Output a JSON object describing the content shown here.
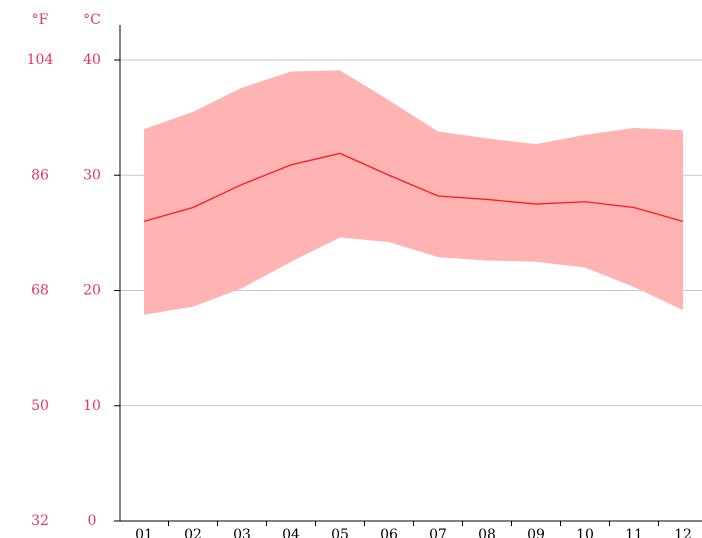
{
  "chart_data": {
    "type": "band-line",
    "y_unit_label": "°C",
    "y2_unit_label": "°F",
    "categories": [
      "01",
      "02",
      "03",
      "04",
      "05",
      "06",
      "07",
      "08",
      "09",
      "10",
      "11",
      "12"
    ],
    "series": [
      {
        "color": "#ffb3b3",
        "values": [
          34.0,
          35.5,
          37.6,
          39.0,
          39.1,
          36.5,
          33.8,
          33.2,
          32.7,
          33.5,
          34.1,
          33.9
        ]
      },
      {
        "color": "#ffb3b3",
        "values": [
          17.9,
          18.6,
          20.2,
          22.5,
          24.6,
          24.2,
          22.9,
          22.6,
          22.5,
          22.0,
          20.3,
          18.3
        ]
      },
      {
        "color": "#ff1a1a",
        "values": [
          26.0,
          27.2,
          29.2,
          30.9,
          31.9,
          30.0,
          28.2,
          27.9,
          27.5,
          27.7,
          27.2,
          26.0
        ]
      }
    ],
    "ylim": [
      0,
      40
    ],
    "yticks": [
      0,
      10,
      20,
      30,
      40
    ],
    "y2lim": [
      32,
      104
    ],
    "y2ticks": [
      32,
      50,
      68,
      86,
      104
    ],
    "grid": true,
    "label_color": "#e8336b"
  }
}
